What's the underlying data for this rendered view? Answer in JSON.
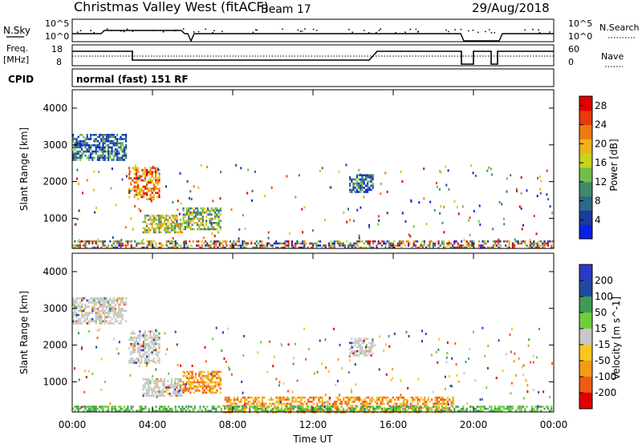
{
  "header": {
    "title": "Christmas Valley West (fitACF)",
    "beam": "Beam 17",
    "date": "29/Aug/2018"
  },
  "panels": {
    "nsky": {
      "left_label": "N.Sky",
      "left_ticks": [
        "10^5",
        "10^0"
      ],
      "right_ticks": [
        "10^5",
        "10^0"
      ],
      "right_label": "N.Search"
    },
    "freq": {
      "left_label_1": "Freq.",
      "left_label_2": "[MHz]",
      "left_ticks": [
        "18",
        "8"
      ],
      "right_ticks": [
        "60",
        "0"
      ],
      "right_label": "Nave"
    },
    "cpid": {
      "label": "CPID",
      "value": "normal (fast) 151 RF"
    }
  },
  "colors": {
    "power_scale": [
      "#0a1fe6",
      "#1d3a9c",
      "#2c6a86",
      "#3f8a6a",
      "#6fbf4a",
      "#c8d21e",
      "#f0b21a",
      "#f07a12",
      "#e83a0c",
      "#e00000"
    ],
    "velocity_scale": [
      "#e00000",
      "#f05a14",
      "#f49a14",
      "#f6c81c",
      "#c8c8c8",
      "#6fcf3a",
      "#3f9a55",
      "#1e4aa0",
      "#2a3ac8"
    ],
    "power_mid_color": "#3f8a6a",
    "velocity_mid_color": "#c8c8c8"
  },
  "chart_data": [
    {
      "type": "heatmap",
      "name": "power",
      "xlabel": "",
      "ylabel": "Slant Range [km]",
      "x_ticks": [
        "00:00",
        "04:00",
        "08:00",
        "12:00",
        "16:00",
        "20:00",
        "00:00"
      ],
      "xlim_hours": [
        0,
        24
      ],
      "y_ticks": [
        1000,
        2000,
        3000,
        4000
      ],
      "ylim": [
        180,
        4500
      ],
      "colorbar_label": "Power [dB]",
      "colorbar_ticks": [
        4,
        8,
        12,
        16,
        20,
        24,
        28
      ],
      "colorbar_range": [
        0,
        30
      ],
      "echo_regions": [
        {
          "t_start": 0.0,
          "t_end": 2.7,
          "range_start": 2600,
          "range_end": 3300,
          "level": "low-mid"
        },
        {
          "t_start": 2.8,
          "t_end": 4.3,
          "range_start": 1500,
          "range_end": 2400,
          "level": "high"
        },
        {
          "t_start": 3.5,
          "t_end": 5.5,
          "range_start": 600,
          "range_end": 1100,
          "level": "mid-high"
        },
        {
          "t_start": 5.5,
          "t_end": 7.4,
          "range_start": 700,
          "range_end": 1300,
          "level": "mid"
        },
        {
          "t_start": 0.0,
          "t_end": 24.0,
          "range_start": 200,
          "range_end": 400,
          "level": "mixed"
        },
        {
          "t_start": 13.8,
          "t_end": 15.0,
          "range_start": 1700,
          "range_end": 2200,
          "level": "low-mid"
        }
      ]
    },
    {
      "type": "heatmap",
      "name": "velocity",
      "xlabel": "Time UT",
      "ylabel": "Slant Range [km]",
      "x_ticks": [
        "00:00",
        "04:00",
        "08:00",
        "12:00",
        "16:00",
        "20:00",
        "00:00"
      ],
      "xlim_hours": [
        0,
        24
      ],
      "y_ticks": [
        1000,
        2000,
        3000,
        4000
      ],
      "ylim": [
        180,
        4500
      ],
      "colorbar_label": "Velocity [m s^-1]",
      "colorbar_ticks": [
        200,
        100,
        50,
        15,
        -15,
        -50,
        -100,
        -200
      ],
      "echo_regions": [
        {
          "t_start": 0.0,
          "t_end": 2.7,
          "range_start": 2600,
          "range_end": 3300,
          "level": "near-zero"
        },
        {
          "t_start": 2.8,
          "t_end": 4.3,
          "range_start": 1500,
          "range_end": 2400,
          "level": "near-zero"
        },
        {
          "t_start": 3.5,
          "t_end": 5.5,
          "range_start": 600,
          "range_end": 1100,
          "level": "near-zero"
        },
        {
          "t_start": 5.5,
          "t_end": 7.4,
          "range_start": 700,
          "range_end": 1300,
          "level": "negative"
        },
        {
          "t_start": 7.5,
          "t_end": 19.0,
          "range_start": 200,
          "range_end": 600,
          "level": "negative"
        },
        {
          "t_start": 0.0,
          "t_end": 24.0,
          "range_start": 200,
          "range_end": 350,
          "level": "positive"
        },
        {
          "t_start": 13.8,
          "t_end": 15.0,
          "range_start": 1700,
          "range_end": 2200,
          "level": "near-zero"
        }
      ]
    }
  ]
}
